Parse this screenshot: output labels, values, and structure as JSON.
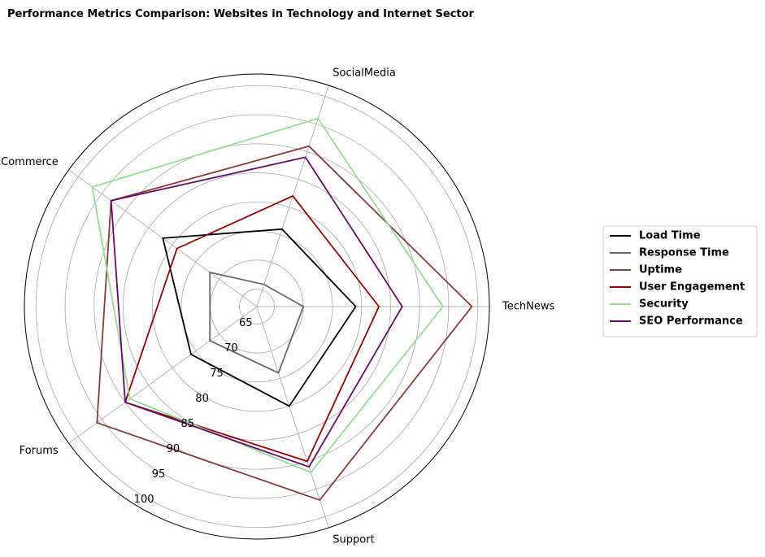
{
  "chart_data": {
    "type": "radar",
    "title": "Performance Metrics Comparison: Websites in Technology and Internet Sector",
    "categories": [
      "TechNews",
      "SocialMedia",
      "ECommerce",
      "Forums",
      "Support"
    ],
    "radial_range": [
      62,
      102
    ],
    "radial_ticks": [
      65,
      70,
      75,
      80,
      85,
      90,
      95,
      100
    ],
    "grid": true,
    "legend_position": "right",
    "series": [
      {
        "name": "Load Time",
        "color": "#000000",
        "values": [
          79,
          76,
          82,
          76,
          80
        ]
      },
      {
        "name": "Response Time",
        "color": "#696969",
        "values": [
          70,
          66,
          72,
          72,
          74
        ]
      },
      {
        "name": "Uptime",
        "color": "#8b3a3a",
        "values": [
          99,
          91,
          93,
          96,
          97
        ]
      },
      {
        "name": "User Engagement",
        "color": "#990000",
        "values": [
          83,
          82,
          79,
          90,
          90
        ]
      },
      {
        "name": "Security",
        "color": "#90e090",
        "values": [
          94,
          96,
          97,
          89,
          92
        ]
      },
      {
        "name": "SEO Performance",
        "color": "#6a0a6a",
        "values": [
          87,
          89,
          93,
          90,
          91
        ]
      }
    ]
  }
}
